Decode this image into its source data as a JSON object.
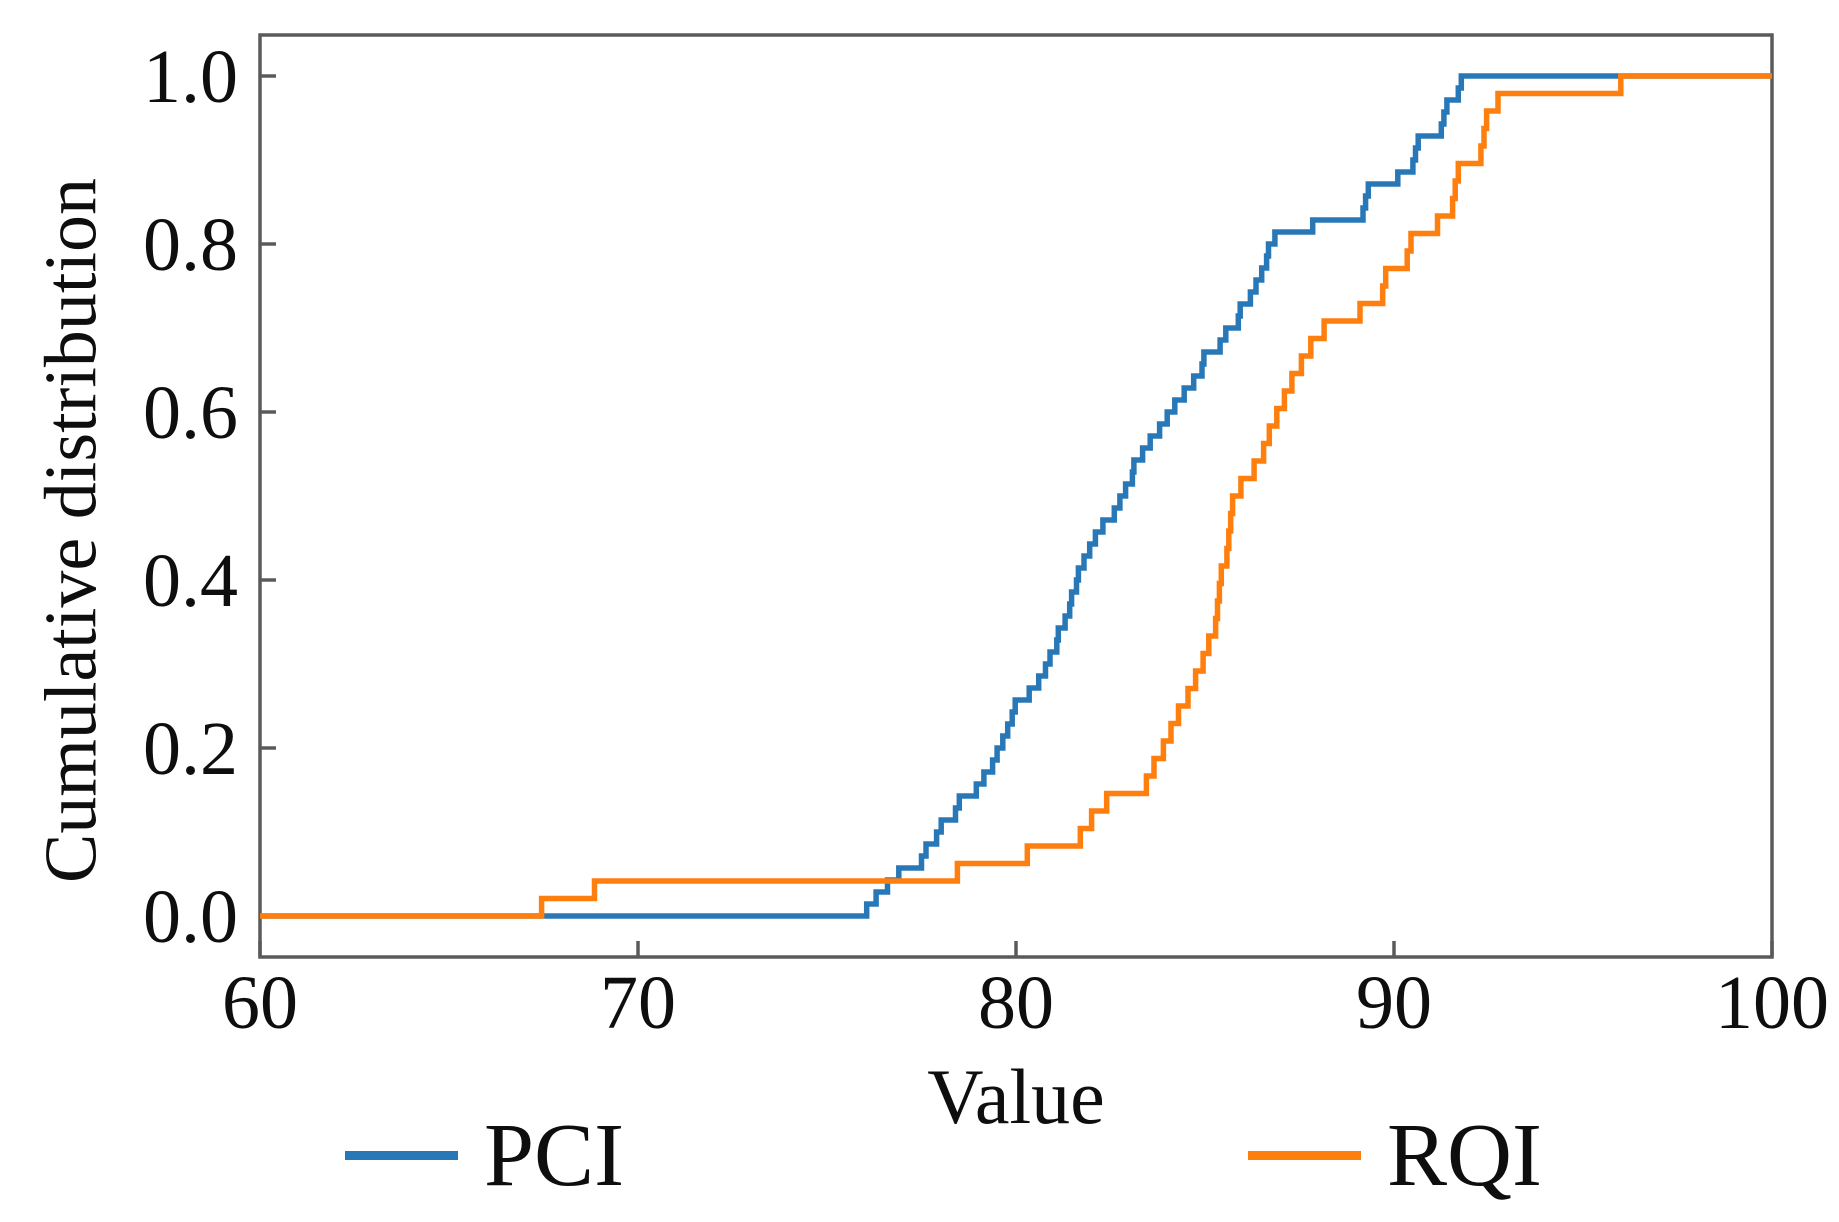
{
  "chart_data": {
    "type": "line",
    "subtype": "ecdf-step",
    "title": "",
    "xlabel": "Value",
    "ylabel": "Cumulative distribution",
    "xlim": [
      60,
      100
    ],
    "ylim": [
      0.0,
      1.0
    ],
    "x_ticks": [
      60,
      70,
      80,
      90,
      100
    ],
    "y_ticks": [
      0.0,
      0.2,
      0.4,
      0.6,
      0.8,
      1.0
    ],
    "grid": false,
    "legend_position": "below",
    "series": [
      {
        "name": "PCI",
        "color": "#2878b8",
        "start_value": 0.0,
        "end_value": 1.0,
        "jump_x": [
          76.05,
          76.3,
          76.6,
          76.9,
          77.5,
          77.62,
          77.9,
          78.02,
          78.4,
          78.5,
          78.95,
          79.15,
          79.38,
          79.5,
          79.65,
          79.78,
          79.9,
          79.98,
          80.35,
          80.6,
          80.78,
          80.9,
          81.08,
          81.12,
          81.3,
          81.42,
          81.47,
          81.6,
          81.65,
          81.8,
          81.95,
          82.1,
          82.3,
          82.6,
          82.75,
          82.9,
          83.08,
          83.12,
          83.35,
          83.55,
          83.8,
          84.0,
          84.2,
          84.45,
          84.7,
          84.92,
          84.97,
          85.4,
          85.55,
          85.88,
          85.93,
          86.2,
          86.35,
          86.5,
          86.63,
          86.68,
          86.85,
          87.85,
          89.18,
          89.25,
          89.32,
          90.1,
          90.5,
          90.57,
          90.64,
          91.25,
          91.32,
          91.4,
          91.7,
          91.78
        ]
      },
      {
        "name": "RQI",
        "color": "#ff7f0e",
        "start_value": 0.0,
        "end_value": 1.0,
        "jump_x": [
          67.45,
          68.85,
          78.45,
          80.3,
          81.7,
          82.0,
          82.4,
          83.45,
          83.65,
          83.9,
          84.1,
          84.3,
          84.55,
          84.75,
          84.95,
          85.1,
          85.28,
          85.33,
          85.38,
          85.43,
          85.58,
          85.63,
          85.68,
          85.73,
          85.95,
          86.3,
          86.55,
          86.7,
          86.9,
          87.1,
          87.3,
          87.55,
          87.8,
          88.15,
          89.1,
          89.7,
          89.78,
          90.35,
          90.45,
          91.15,
          91.55,
          91.62,
          91.7,
          92.3,
          92.38,
          92.45,
          92.75,
          96.0
        ]
      }
    ],
    "style": {
      "spine_color": "#5a5a5a",
      "text_color": "#0e0e0e",
      "background": "#ffffff"
    }
  }
}
